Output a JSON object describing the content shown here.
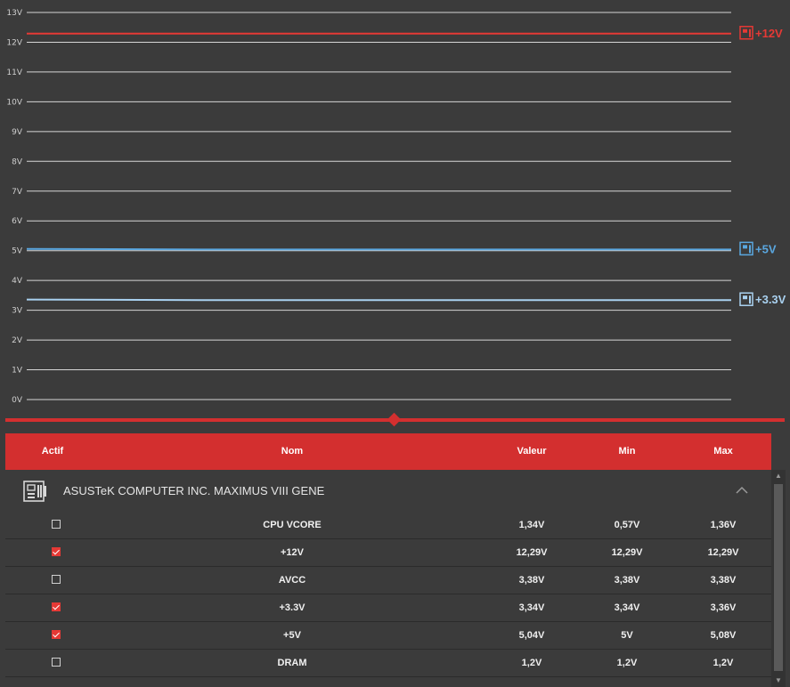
{
  "chart_data": {
    "type": "line",
    "ylim": [
      0,
      13
    ],
    "yticks": [
      "0V",
      "1V",
      "2V",
      "3V",
      "4V",
      "5V",
      "6V",
      "7V",
      "8V",
      "9V",
      "10V",
      "11V",
      "12V",
      "13V"
    ],
    "grid": true,
    "series": [
      {
        "name": "+12V",
        "color": "#e53935",
        "values": [
          12.29,
          12.29,
          12.29,
          12.29,
          12.29
        ]
      },
      {
        "name": "+5V",
        "color": "#5aa7e0",
        "values": [
          5.06,
          5.04,
          5.04,
          5.04,
          5.04
        ]
      },
      {
        "name": "+3.3V",
        "color": "#a9d1f0",
        "values": [
          3.36,
          3.34,
          3.34,
          3.34,
          3.34
        ]
      }
    ]
  },
  "table": {
    "headers": {
      "active": "Actif",
      "name": "Nom",
      "value": "Valeur",
      "min": "Min",
      "max": "Max"
    },
    "group": {
      "title": "ASUSTeK COMPUTER INC. MAXIMUS VIII GENE",
      "icon": "motherboard-icon"
    },
    "rows": [
      {
        "checked": false,
        "name": "CPU VCORE",
        "value": "1,34V",
        "min": "0,57V",
        "max": "1,36V"
      },
      {
        "checked": true,
        "name": "+12V",
        "value": "12,29V",
        "min": "12,29V",
        "max": "12,29V"
      },
      {
        "checked": false,
        "name": "AVCC",
        "value": "3,38V",
        "min": "3,38V",
        "max": "3,38V"
      },
      {
        "checked": true,
        "name": "+3.3V",
        "value": "3,34V",
        "min": "3,34V",
        "max": "3,36V"
      },
      {
        "checked": true,
        "name": "+5V",
        "value": "5,04V",
        "min": "5V",
        "max": "5,08V"
      },
      {
        "checked": false,
        "name": "DRAM",
        "value": "1,2V",
        "min": "1,2V",
        "max": "1,2V"
      }
    ]
  },
  "colors": {
    "accent": "#d32f2f",
    "background": "#3b3b3b"
  }
}
